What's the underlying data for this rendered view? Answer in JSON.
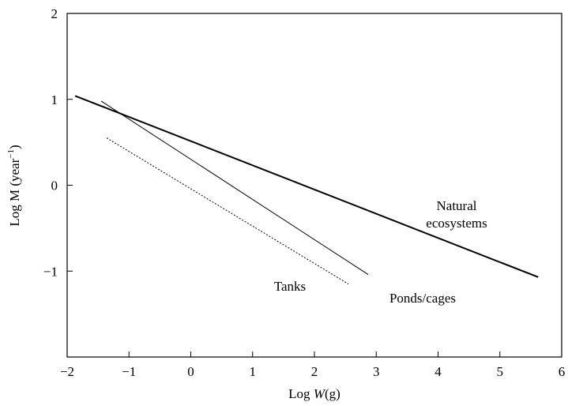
{
  "chart_data": {
    "type": "line",
    "xlabel": [
      "Log ",
      "W",
      "(g)"
    ],
    "ylabel": [
      "Log M (year",
      "−1",
      ")"
    ],
    "xlim": [
      -2,
      6
    ],
    "xticks": [
      {
        "value": -2,
        "label": "−2"
      },
      {
        "value": -1,
        "label": "−1"
      },
      0,
      1,
      2,
      3,
      4,
      5,
      6
    ],
    "ylim": [
      -2,
      2
    ],
    "yticks": [
      {
        "value": -2,
        "label": ""
      },
      {
        "value": -1,
        "label": "−1"
      },
      0,
      1,
      2
    ],
    "series": [
      {
        "name": [
          "Natural",
          "ecosystems"
        ],
        "x": [
          -1.87,
          5.62
        ],
        "y": [
          1.04,
          -1.07
        ],
        "color": "#000000",
        "style": "thick"
      },
      {
        "name": [
          "Ponds/cages"
        ],
        "x": [
          -1.45,
          2.87
        ],
        "y": [
          0.98,
          -1.04
        ],
        "color": "#000000",
        "style": "thin"
      },
      {
        "name": [
          "Tanks"
        ],
        "x": [
          -1.36,
          2.55
        ],
        "y": [
          0.55,
          -1.15
        ],
        "color": "#000000",
        "style": "dotted"
      }
    ]
  }
}
